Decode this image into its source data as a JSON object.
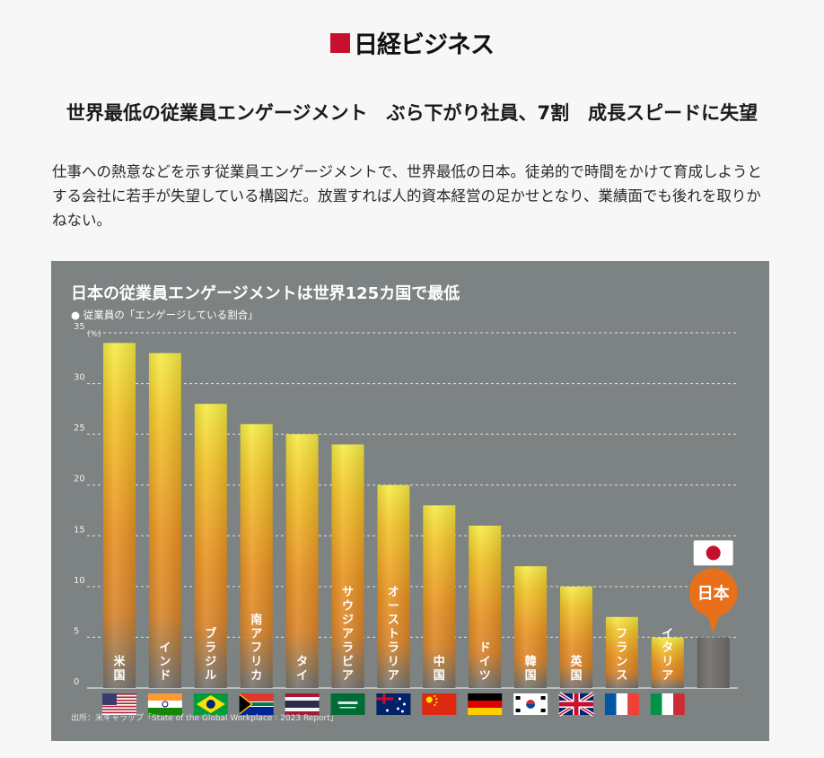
{
  "brand": {
    "logo": "日経ビジネス",
    "logo_icon": "nikkei-square-icon",
    "accent": "#c8102e"
  },
  "article": {
    "headline": "世界最低の従業員エンゲージメント　ぶら下がり社員、7割　成長スピードに失望",
    "lead": "仕事への熱意などを示す従業員エンゲージメントで、世界最低の日本。徒弟的で時間をかけて育成しようとする会社に若手が失望している構図だ。放置すれば人的資本経営の足かせとなり、業績面でも後れを取りかねない。"
  },
  "chart_data": {
    "type": "bar",
    "title": "日本の従業員エンゲージメントは世界125カ国で最低",
    "subtitle": "● 従業員の「エンゲージしている割合」",
    "unit": "(%)",
    "ylim": [
      0,
      35
    ],
    "yticks": [
      0,
      5,
      10,
      15,
      20,
      25,
      30,
      35
    ],
    "grid": true,
    "categories": [
      "米国",
      "インド",
      "ブラジル",
      "南アフリカ",
      "タイ",
      "サウジアラビア",
      "オーストラリア",
      "中国",
      "ドイツ",
      "韓国",
      "英国",
      "フランス",
      "イタリア",
      "日本"
    ],
    "values": [
      34,
      33,
      28,
      26,
      25,
      24,
      20,
      18,
      16,
      12,
      10,
      7,
      5,
      5
    ],
    "flags": [
      "us-flag",
      "india-flag",
      "brazil-flag",
      "south-africa-flag",
      "thailand-flag",
      "saudi-arabia-flag",
      "australia-flag",
      "china-flag",
      "germany-flag",
      "korea-flag",
      "uk-flag",
      "france-flag",
      "italy-flag",
      "japan-flag"
    ],
    "highlight": {
      "category": "日本",
      "label": "日本"
    },
    "source": "出所：米ギャラップ「State of the Global Workplace : 2023 Report」",
    "colors": {
      "bar_top": "#f4e53a",
      "bar_mid": "#e8891f",
      "bar_bottom": "#7a7a76",
      "highlight": "#e8701a",
      "background": "#7d8282"
    }
  }
}
